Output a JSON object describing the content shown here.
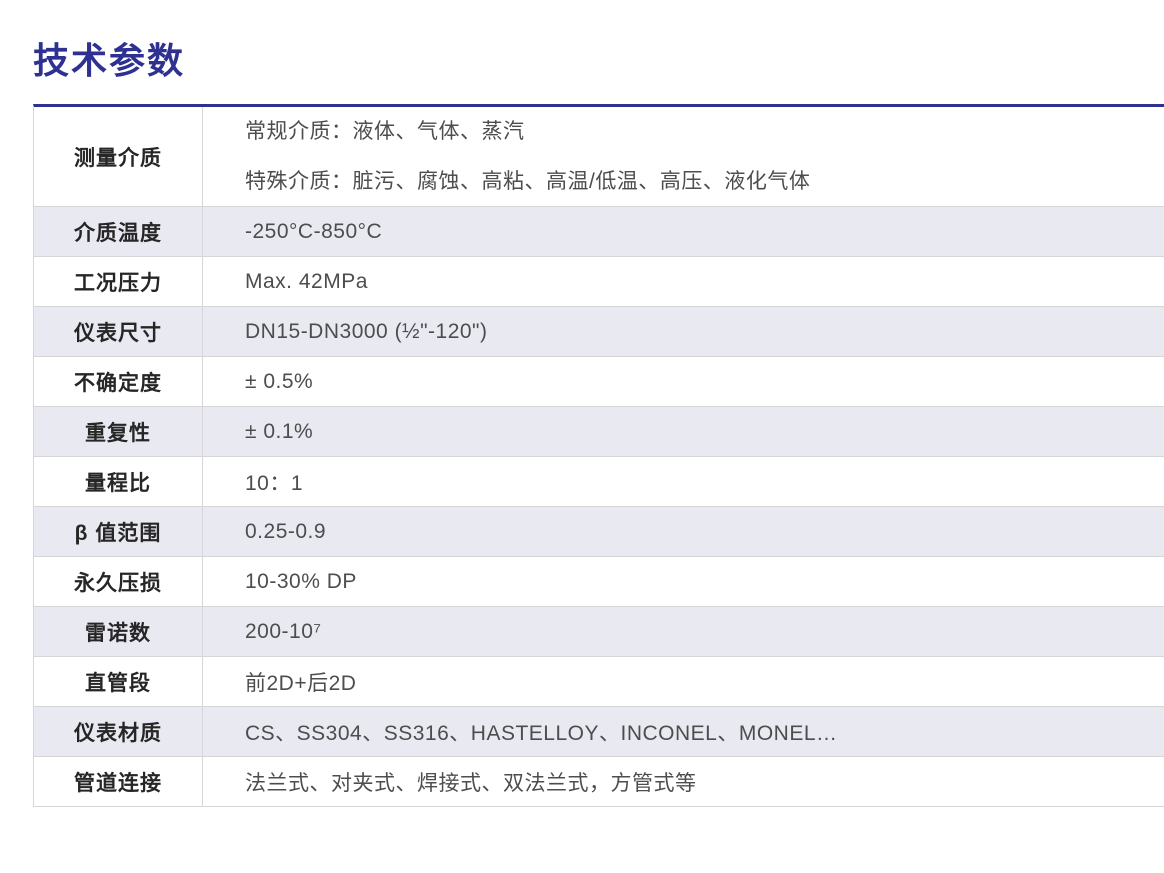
{
  "page": {
    "title": "技术参数"
  },
  "colors": {
    "accent": "#2e3192",
    "row_shade": "#e9e9f2",
    "grid_line": "#d6d6d6",
    "label_text": "#262626",
    "value_text": "#4d4d4d"
  },
  "table": {
    "rows": [
      {
        "label": "测量介质",
        "value_lines": [
          "常规介质：液体、气体、蒸汽",
          "特殊介质：脏污、腐蚀、高粘、高温/低温、高压、液化气体"
        ]
      },
      {
        "label": "介质温度",
        "value": "-250°C-850°C"
      },
      {
        "label": "工况压力",
        "value": "Max. 42MPa"
      },
      {
        "label": "仪表尺寸",
        "value": "DN15-DN3000 (½\"-120\")"
      },
      {
        "label": "不确定度",
        "value": "± 0.5%"
      },
      {
        "label": "重复性",
        "value": "± 0.1%"
      },
      {
        "label": "量程比",
        "value": "10：1"
      },
      {
        "label": "β 值范围",
        "value": "0.25-0.9"
      },
      {
        "label": "永久压损",
        "value": "10-30% DP"
      },
      {
        "label": "雷诺数",
        "value": "200-10⁷"
      },
      {
        "label": "直管段",
        "value": "前2D+后2D"
      },
      {
        "label": "仪表材质",
        "value": "CS、SS304、SS316、HASTELLOY、INCONEL、MONEL…"
      },
      {
        "label": "管道连接",
        "value": "法兰式、对夹式、焊接式、双法兰式，方管式等"
      }
    ]
  }
}
